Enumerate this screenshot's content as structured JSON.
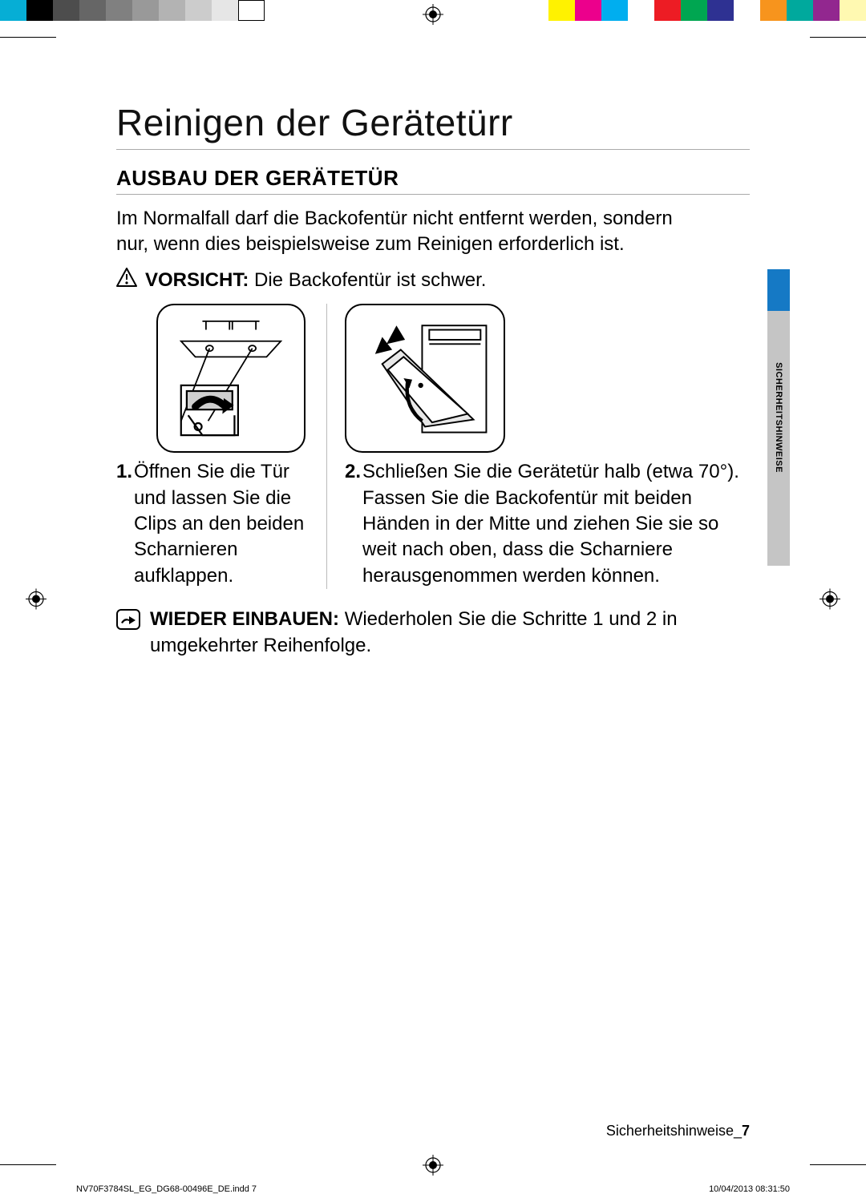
{
  "colorbar": {
    "left": [
      "#06aed5",
      "#000000",
      "#4d4d4d",
      "#666666",
      "#808080",
      "#999999",
      "#b3b3b3",
      "#cccccc",
      "#e6e6e6",
      "#ffffff"
    ],
    "right": [
      "#fff200",
      "#ec008c",
      "#00aeef",
      "#ffffff",
      "#ed1c24",
      "#00a651",
      "#2e3192",
      "#ffffff",
      "#f7941d",
      "#00a99d",
      "#92278f",
      "#fff9b1"
    ]
  },
  "title": "Reinigen der Gerätetürr",
  "sectionHeading": "AUSBAU DER GERÄTETÜR",
  "intro": "Im Normalfall darf die Backofentür nicht entfernt werden, sondern nur, wenn dies beispielsweise zum Reinigen erforderlich ist.",
  "vorsicht": {
    "label": "VORSICHT:",
    "text": "Die Backofentür ist schwer."
  },
  "step1": {
    "num": "1.",
    "text": "Öffnen Sie die Tür und lassen Sie die Clips an den beiden Scharnieren aufklappen."
  },
  "step2": {
    "num": "2.",
    "text": "Schließen Sie die Gerätetür halb (etwa 70°). Fassen Sie die Backofentür mit beiden Händen in der Mitte und ziehen Sie sie so weit nach oben, dass die Scharniere herausgenommen werden können."
  },
  "reinstall": {
    "label": "WIEDER EINBAUEN:",
    "text": "Wiederholen Sie die Schritte 1 und 2 in umgekehrter Reihenfolge."
  },
  "sideTab": "SICHERHEITSHINWEISE",
  "footer": {
    "section": "Sicherheitshinweise",
    "page": "7"
  },
  "printFooter": {
    "file": "NV70F3784SL_EG_DG68-00496E_DE.indd   7",
    "timestamp": "10/04/2013   08:31:50"
  },
  "style": {
    "svgStroke": "#000000",
    "accentBlue": "#1579c5",
    "tabGray": "#c5c5c5"
  }
}
